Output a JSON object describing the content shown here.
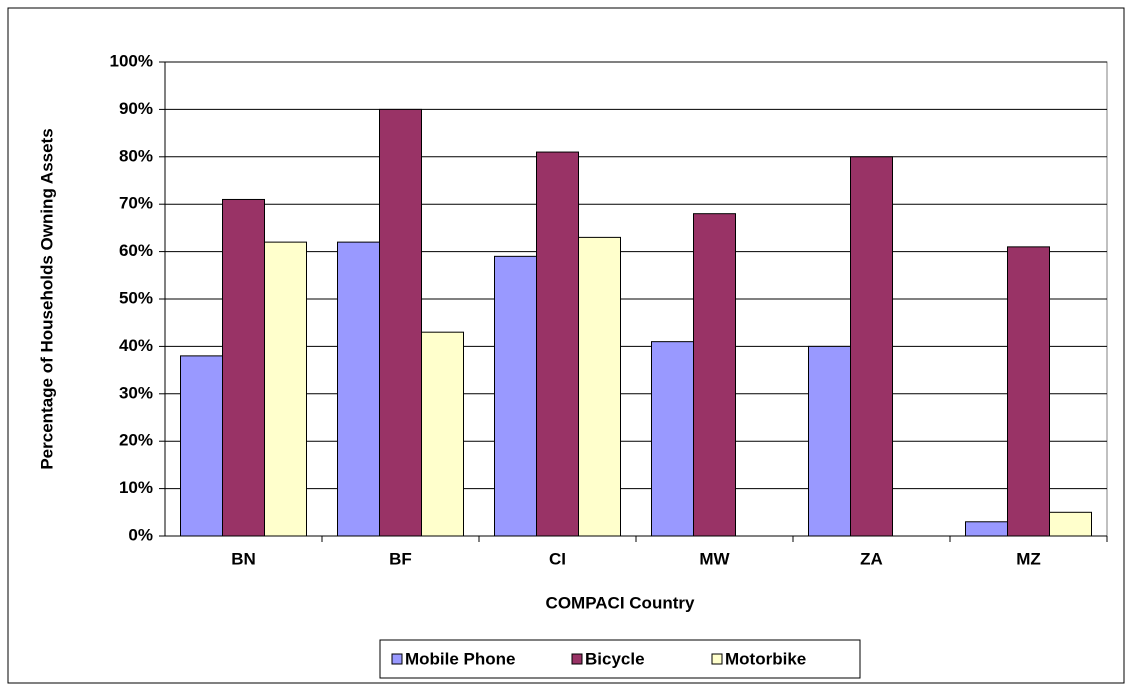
{
  "chart_data": {
    "type": "bar",
    "x_label": "COMPACI Country",
    "y_label": "Percentage of Households Owning Assets",
    "categories": [
      "BN",
      "BF",
      "CI",
      "MW",
      "ZA",
      "MZ"
    ],
    "series": [
      {
        "name": "Mobile Phone",
        "color": "#9999ff",
        "values": [
          38,
          62,
          59,
          41,
          40,
          3
        ]
      },
      {
        "name": "Bicycle",
        "color": "#993366",
        "values": [
          71,
          90,
          81,
          68,
          80,
          61
        ]
      },
      {
        "name": "Motorbike",
        "color": "#ffffcc",
        "values": [
          62,
          43,
          63,
          0,
          0,
          5
        ]
      }
    ],
    "ylim": [
      0,
      100
    ],
    "yticks": [
      {
        "value": 0,
        "label": "0%"
      },
      {
        "value": 10,
        "label": "10%"
      },
      {
        "value": 20,
        "label": "20%"
      },
      {
        "value": 30,
        "label": "30%"
      },
      {
        "value": 40,
        "label": "40%"
      },
      {
        "value": 50,
        "label": "50%"
      },
      {
        "value": 60,
        "label": "60%"
      },
      {
        "value": 70,
        "label": "70%"
      },
      {
        "value": 80,
        "label": "80%"
      },
      {
        "value": 90,
        "label": "90%"
      },
      {
        "value": 100,
        "label": "100%"
      }
    ],
    "grid": true,
    "legend": "bottom"
  }
}
